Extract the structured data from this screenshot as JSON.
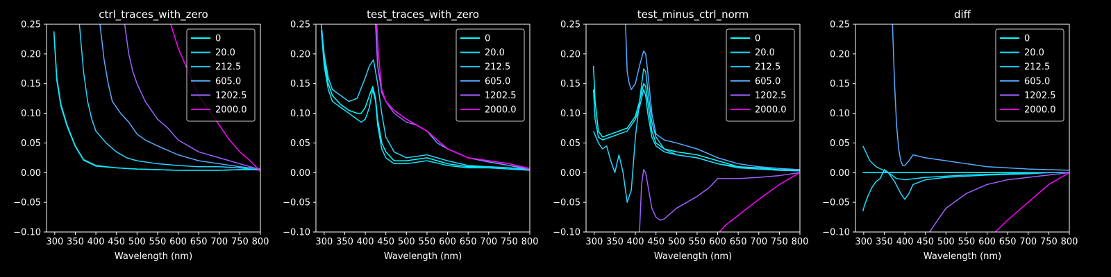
{
  "series_colors": {
    "0": "#00ffff",
    "20.0": "#0de5ff",
    "212.5": "#27d4ff",
    "605.0": "#55aaff",
    "1202.5": "#a060ff",
    "2000.0": "#ff00ff"
  },
  "chart_data": [
    {
      "type": "line",
      "title": "ctrl_traces_with_zero",
      "xlabel": "Wavelength (nm)",
      "ylabel": "",
      "xlim": [
        280,
        800
      ],
      "ylim": [
        -0.1,
        0.25
      ],
      "xticks": [
        "300",
        "350",
        "400",
        "450",
        "500",
        "550",
        "600",
        "650",
        "700",
        "750",
        "800"
      ],
      "yticks": [
        "−0.10",
        "−0.05",
        "0.00",
        "0.05",
        "0.10",
        "0.15",
        "0.20",
        "0.25"
      ],
      "legend_position": "top-right",
      "series": [
        {
          "name": "0",
          "x": [
            298,
            305,
            315,
            330,
            350,
            370,
            400,
            450,
            500,
            550,
            600,
            650,
            700,
            750,
            800
          ],
          "y": [
            0.238,
            0.16,
            0.115,
            0.08,
            0.045,
            0.022,
            0.012,
            0.008,
            0.006,
            0.005,
            0.004,
            0.004,
            0.004,
            0.005,
            0.005
          ]
        },
        {
          "name": "20.0",
          "x": [
            298,
            305,
            315,
            330,
            350,
            370,
            400,
            450,
            500,
            550,
            600,
            650,
            700,
            750,
            800
          ],
          "y": [
            0.236,
            0.155,
            0.112,
            0.078,
            0.044,
            0.021,
            0.011,
            0.008,
            0.006,
            0.005,
            0.004,
            0.004,
            0.004,
            0.005,
            0.005
          ]
        },
        {
          "name": "212.5",
          "x": [
            360,
            365,
            370,
            380,
            390,
            400,
            425,
            450,
            475,
            500,
            550,
            600,
            650,
            700,
            750,
            800
          ],
          "y": [
            0.25,
            0.21,
            0.17,
            0.12,
            0.09,
            0.07,
            0.05,
            0.035,
            0.025,
            0.02,
            0.015,
            0.012,
            0.01,
            0.01,
            0.008,
            0.004
          ]
        },
        {
          "name": "605.0",
          "x": [
            410,
            415,
            420,
            430,
            440,
            460,
            480,
            500,
            520,
            550,
            600,
            650,
            700,
            750,
            800
          ],
          "y": [
            0.25,
            0.22,
            0.19,
            0.15,
            0.12,
            0.1,
            0.085,
            0.065,
            0.055,
            0.045,
            0.03,
            0.02,
            0.015,
            0.01,
            0.006
          ]
        },
        {
          "name": "1202.5",
          "x": [
            470,
            480,
            490,
            500,
            520,
            550,
            575,
            600,
            650,
            700,
            750,
            800
          ],
          "y": [
            0.25,
            0.2,
            0.17,
            0.15,
            0.12,
            0.09,
            0.075,
            0.055,
            0.035,
            0.025,
            0.015,
            0.005
          ]
        },
        {
          "name": "2000.0",
          "x": [
            582,
            600,
            650,
            700,
            725,
            750,
            775,
            800
          ],
          "y": [
            0.25,
            0.21,
            0.13,
            0.08,
            0.055,
            0.035,
            0.02,
            0.002
          ]
        }
      ]
    },
    {
      "type": "line",
      "title": "test_traces_with_zero",
      "xlabel": "Wavelength (nm)",
      "ylabel": "",
      "xlim": [
        280,
        800
      ],
      "ylim": [
        -0.1,
        0.25
      ],
      "xticks": [
        "300",
        "350",
        "400",
        "450",
        "500",
        "550",
        "600",
        "650",
        "700",
        "750",
        "800"
      ],
      "yticks": [
        "−0.10",
        "−0.05",
        "0.00",
        "0.05",
        "0.10",
        "0.15",
        "0.20",
        "0.25"
      ],
      "legend_position": "top-right",
      "series": [
        {
          "name": "0",
          "x": [
            293,
            300,
            310,
            320,
            340,
            360,
            380,
            390,
            400,
            410,
            418,
            425,
            430,
            440,
            450,
            470,
            500,
            550,
            600,
            650,
            700,
            750,
            800
          ],
          "y": [
            0.25,
            0.19,
            0.15,
            0.13,
            0.115,
            0.105,
            0.1,
            0.1,
            0.11,
            0.13,
            0.145,
            0.125,
            0.09,
            0.05,
            0.035,
            0.02,
            0.02,
            0.025,
            0.015,
            0.01,
            0.01,
            0.008,
            0.005
          ]
        },
        {
          "name": "20.0",
          "x": [
            293,
            300,
            310,
            320,
            340,
            360,
            380,
            390,
            400,
            410,
            418,
            425,
            430,
            440,
            450,
            470,
            500,
            550,
            600,
            650,
            700,
            750,
            800
          ],
          "y": [
            0.24,
            0.18,
            0.14,
            0.12,
            0.11,
            0.1,
            0.09,
            0.085,
            0.09,
            0.11,
            0.14,
            0.12,
            0.08,
            0.04,
            0.025,
            0.015,
            0.015,
            0.02,
            0.012,
            0.008,
            0.008,
            0.006,
            0.004
          ]
        },
        {
          "name": "212.5",
          "x": [
            293,
            300,
            310,
            320,
            340,
            360,
            380,
            400,
            410,
            420,
            430,
            440,
            450,
            470,
            500,
            550,
            600,
            650,
            700,
            750,
            800
          ],
          "y": [
            0.25,
            0.2,
            0.16,
            0.14,
            0.13,
            0.12,
            0.125,
            0.16,
            0.18,
            0.19,
            0.15,
            0.1,
            0.06,
            0.035,
            0.025,
            0.03,
            0.02,
            0.012,
            0.01,
            0.008,
            0.005
          ]
        },
        {
          "name": "605.0",
          "x": [
            425,
            430,
            440,
            450,
            470,
            500,
            525,
            550,
            575,
            600,
            650,
            700,
            750,
            800
          ],
          "y": [
            0.25,
            0.18,
            0.14,
            0.12,
            0.105,
            0.09,
            0.08,
            0.07,
            0.05,
            0.04,
            0.025,
            0.018,
            0.012,
            0.005
          ]
        },
        {
          "name": "1202.5",
          "x": [
            426,
            430,
            440,
            450,
            470,
            500,
            525,
            550,
            575,
            600,
            650,
            700,
            750,
            800
          ],
          "y": [
            0.25,
            0.18,
            0.135,
            0.12,
            0.1,
            0.085,
            0.08,
            0.07,
            0.055,
            0.04,
            0.025,
            0.02,
            0.015,
            0.005
          ]
        },
        {
          "name": "2000.0",
          "x": [
            428,
            432,
            440,
            450,
            470,
            500,
            525,
            550,
            575,
            600,
            650,
            700,
            750,
            800
          ],
          "y": [
            0.25,
            0.2,
            0.14,
            0.12,
            0.105,
            0.09,
            0.08,
            0.07,
            0.055,
            0.04,
            0.025,
            0.02,
            0.015,
            0.007
          ]
        }
      ]
    },
    {
      "type": "line",
      "title": "test_minus_ctrl_norm",
      "xlabel": "Wavelength (nm)",
      "ylabel": "",
      "xlim": [
        280,
        800
      ],
      "ylim": [
        -0.1,
        0.25
      ],
      "xticks": [
        "300",
        "350",
        "400",
        "450",
        "500",
        "550",
        "600",
        "650",
        "700",
        "750",
        "800"
      ],
      "yticks": [
        "−0.10",
        "−0.05",
        "0.00",
        "0.05",
        "0.10",
        "0.15",
        "0.20",
        "0.25"
      ],
      "legend_position": "top-right",
      "series": [
        {
          "name": "0",
          "x": [
            298,
            302,
            310,
            320,
            340,
            360,
            380,
            400,
            410,
            420,
            425,
            430,
            440,
            450,
            470,
            500,
            550,
            600,
            650,
            700,
            750,
            800
          ],
          "y": [
            0.18,
            0.12,
            0.07,
            0.06,
            0.065,
            0.07,
            0.075,
            0.095,
            0.12,
            0.15,
            0.145,
            0.12,
            0.07,
            0.05,
            0.04,
            0.035,
            0.03,
            0.02,
            0.01,
            0.008,
            0.005,
            0.004
          ]
        },
        {
          "name": "20.0",
          "x": [
            298,
            302,
            310,
            320,
            340,
            360,
            380,
            400,
            410,
            420,
            425,
            430,
            440,
            450,
            470,
            500,
            550,
            600,
            650,
            700,
            750,
            800
          ],
          "y": [
            0.14,
            0.09,
            0.06,
            0.055,
            0.06,
            0.065,
            0.07,
            0.09,
            0.11,
            0.14,
            0.13,
            0.1,
            0.06,
            0.045,
            0.035,
            0.03,
            0.025,
            0.015,
            0.008,
            0.006,
            0.004,
            0.003
          ]
        },
        {
          "name": "212.5",
          "x": [
            298,
            310,
            320,
            330,
            340,
            350,
            360,
            370,
            380,
            390,
            400,
            410,
            420,
            425,
            430,
            440,
            450,
            470,
            500,
            550,
            600,
            650,
            700,
            750,
            800
          ],
          "y": [
            0.07,
            0.05,
            0.04,
            0.045,
            0.02,
            0.0,
            0.03,
            0.0,
            -0.05,
            -0.03,
            0.06,
            0.12,
            0.175,
            0.17,
            0.14,
            0.085,
            0.06,
            0.04,
            0.03,
            0.025,
            0.015,
            0.01,
            0.006,
            0.004,
            0.003
          ]
        },
        {
          "name": "605.0",
          "x": [
            376,
            380,
            385,
            390,
            395,
            400,
            410,
            420,
            425,
            430,
            440,
            450,
            470,
            500,
            550,
            600,
            650,
            700,
            750,
            800
          ],
          "y": [
            0.25,
            0.17,
            0.15,
            0.14,
            0.145,
            0.15,
            0.18,
            0.205,
            0.2,
            0.17,
            0.1,
            0.065,
            0.055,
            0.05,
            0.04,
            0.025,
            0.015,
            0.01,
            0.007,
            0.005
          ]
        },
        {
          "name": "1202.5",
          "x": [
            410,
            415,
            420,
            425,
            430,
            440,
            450,
            460,
            470,
            500,
            550,
            580,
            600,
            650,
            700,
            750,
            800
          ],
          "y": [
            -0.1,
            -0.02,
            0.005,
            0.0,
            -0.02,
            -0.06,
            -0.075,
            -0.08,
            -0.078,
            -0.06,
            -0.04,
            -0.025,
            -0.01,
            -0.01,
            -0.008,
            -0.005,
            0.0
          ]
        },
        {
          "name": "2000.0",
          "x": [
            604,
            620,
            650,
            700,
            750,
            780,
            800
          ],
          "y": [
            -0.1,
            -0.088,
            -0.072,
            -0.045,
            -0.02,
            -0.008,
            0.0
          ]
        }
      ]
    },
    {
      "type": "line",
      "title": "diff",
      "xlabel": "Wavelength (nm)",
      "ylabel": "",
      "xlim": [
        280,
        800
      ],
      "ylim": [
        -0.1,
        0.25
      ],
      "xticks": [
        "300",
        "350",
        "400",
        "450",
        "500",
        "550",
        "600",
        "650",
        "700",
        "750",
        "800"
      ],
      "yticks": [
        "−0.10",
        "−0.05",
        "0.00",
        "0.05",
        "0.10",
        "0.15",
        "0.20",
        "0.25"
      ],
      "legend_position": "top-right",
      "series": [
        {
          "name": "0",
          "x": [
            298,
            800
          ],
          "y": [
            0.0,
            0.0
          ]
        },
        {
          "name": "20.0",
          "x": [
            298,
            302,
            310,
            320,
            330,
            340,
            350,
            360,
            380,
            400,
            450,
            500,
            550,
            600,
            650,
            700,
            750,
            800
          ],
          "y": [
            -0.065,
            -0.055,
            -0.04,
            -0.025,
            -0.015,
            -0.01,
            0.005,
            0.0,
            -0.01,
            -0.012,
            -0.008,
            -0.006,
            -0.004,
            -0.003,
            -0.002,
            -0.001,
            0.0,
            0.0
          ]
        },
        {
          "name": "212.5",
          "x": [
            298,
            305,
            315,
            330,
            345,
            360,
            375,
            390,
            400,
            410,
            420,
            450,
            500,
            550,
            600,
            650,
            700,
            750,
            800
          ],
          "y": [
            0.045,
            0.035,
            0.02,
            0.01,
            0.005,
            0.0,
            -0.015,
            -0.035,
            -0.045,
            -0.035,
            -0.02,
            -0.012,
            -0.008,
            -0.006,
            -0.004,
            -0.003,
            -0.002,
            0.0,
            0.0
          ]
        },
        {
          "name": "605.0",
          "x": [
            370,
            375,
            380,
            385,
            390,
            395,
            400,
            410,
            420,
            450,
            500,
            550,
            600,
            650,
            700,
            750,
            800
          ],
          "y": [
            0.25,
            0.15,
            0.08,
            0.04,
            0.02,
            0.012,
            0.012,
            0.02,
            0.03,
            0.025,
            0.02,
            0.015,
            0.01,
            0.008,
            0.006,
            0.005,
            0.004
          ]
        },
        {
          "name": "1202.5",
          "x": [
            460,
            480,
            500,
            550,
            600,
            650,
            700,
            750,
            800
          ],
          "y": [
            -0.1,
            -0.08,
            -0.06,
            -0.035,
            -0.02,
            -0.012,
            -0.008,
            -0.004,
            0.0
          ]
        },
        {
          "name": "2000.0",
          "x": [
            620,
            650,
            700,
            750,
            780,
            800
          ],
          "y": [
            -0.1,
            -0.08,
            -0.05,
            -0.02,
            -0.008,
            0.0
          ]
        }
      ]
    }
  ]
}
